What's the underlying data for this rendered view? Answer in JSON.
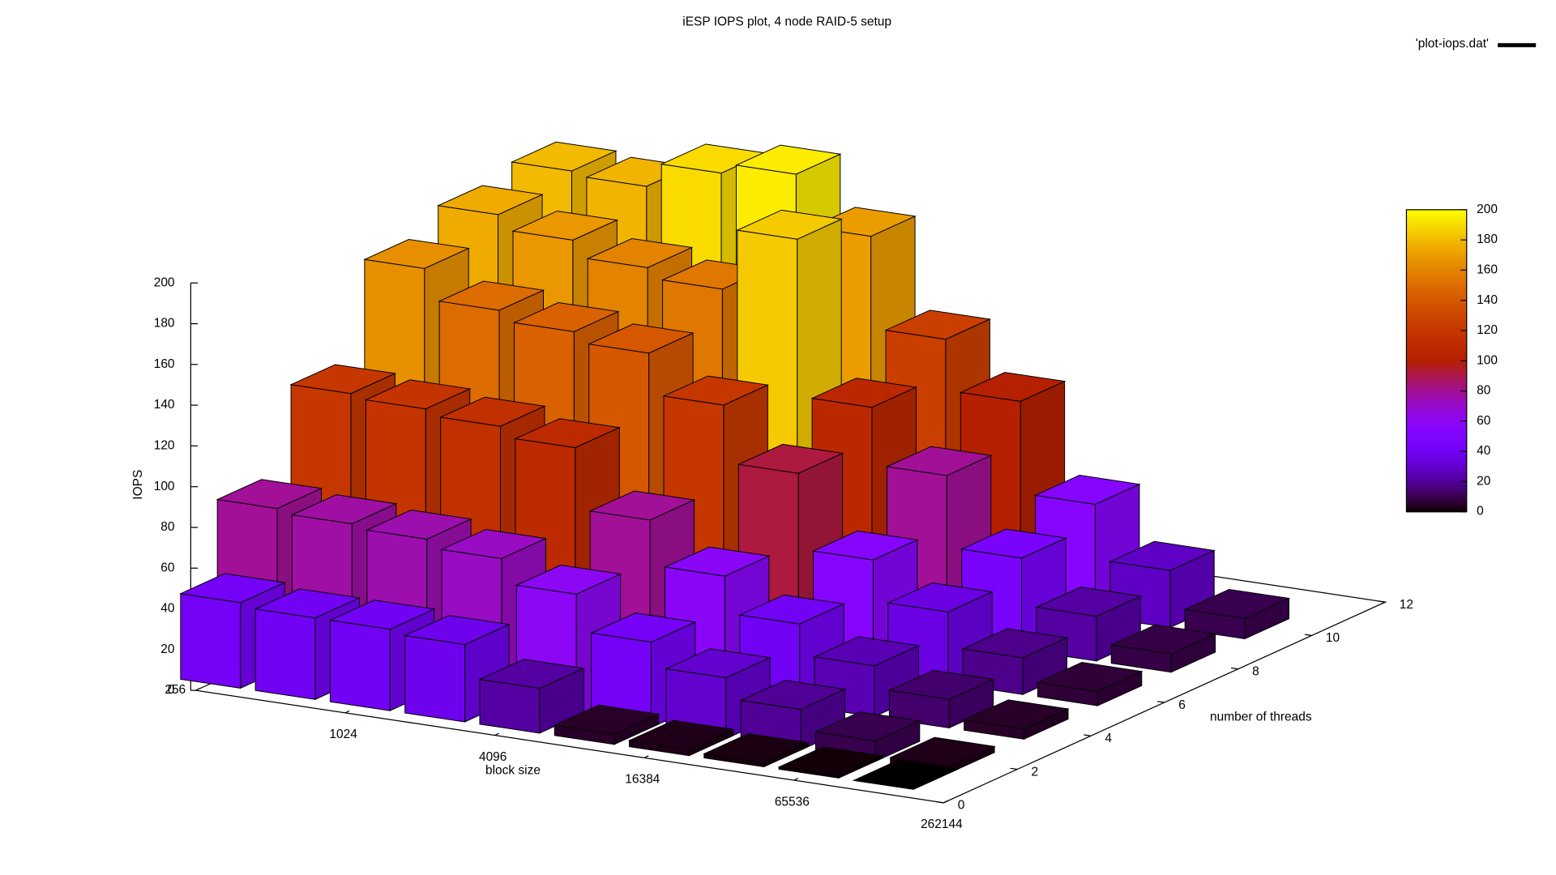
{
  "chart_data": {
    "type": "bar3d",
    "title": "iESP IOPS plot, 4 node RAID-5 setup",
    "xlabel": "block size",
    "ylabel": "number of threads",
    "zlabel": "IOPS",
    "legend": "'plot-iops.dat'",
    "legend_position": "top-right",
    "xlog": 2,
    "x": [
      256,
      512,
      1024,
      2048,
      4096,
      8192,
      16384,
      32768,
      65536,
      131072
    ],
    "xlim": [
      256,
      262144
    ],
    "xticks": [
      256,
      1024,
      4096,
      16384,
      65536,
      262144
    ],
    "y": [
      1,
      2,
      4,
      6,
      8,
      10
    ],
    "ylim": [
      0,
      12
    ],
    "yticks": [
      0,
      2,
      4,
      6,
      8,
      10,
      12
    ],
    "zlim": [
      0,
      200
    ],
    "zticks": [
      0,
      20,
      40,
      60,
      80,
      100,
      120,
      140,
      160,
      180,
      200
    ],
    "cbrange": [
      0,
      200
    ],
    "cbticks": [
      0,
      20,
      40,
      60,
      80,
      100,
      120,
      140,
      160,
      180,
      200
    ],
    "palette": "rgbformulae 7,5,15",
    "values": [
      [
        42,
        40,
        40,
        38,
        22,
        5,
        3,
        2,
        1,
        0
      ],
      [
        80,
        78,
        76,
        72,
        60,
        42,
        30,
        20,
        10,
        3
      ],
      [
        120,
        118,
        115,
        110,
        80,
        58,
        40,
        25,
        14,
        5
      ],
      [
        165,
        150,
        145,
        140,
        120,
        92,
        55,
        35,
        18,
        7
      ],
      [
        175,
        168,
        160,
        155,
        185,
        108,
        80,
        45,
        22,
        9
      ],
      [
        180,
        178,
        190,
        195,
        170,
        125,
        100,
        55,
        28,
        10
      ]
    ]
  }
}
